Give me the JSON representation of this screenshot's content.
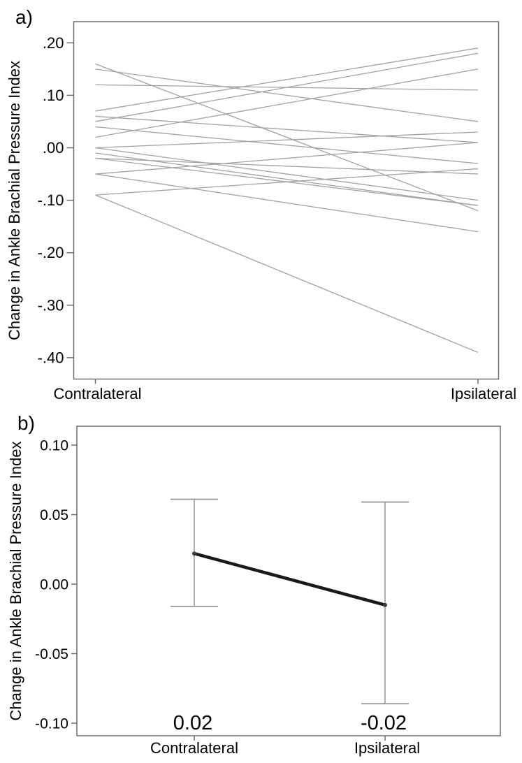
{
  "figure_title": "Change in Ankle Brachial Pressure Index, Contralateral vs Ipsilateral",
  "colors": {
    "background": "#ffffff",
    "axis_border": "#6e6e6e",
    "tick": "#6e6e6e",
    "spaghetti_line": "#a2a2a2",
    "error_bar": "#8f8f8f",
    "mean_line": "#1a1a1a",
    "mean_point": "#3c3c3c",
    "text": "#000000"
  },
  "chart_data": [
    {
      "panel": "a",
      "panel_label": "a)",
      "type": "line",
      "subtype": "paired-spaghetti",
      "title": "",
      "xlabel": "",
      "ylabel": "Change in Ankle Brachial Pressure Index",
      "categories": [
        "Contralateral",
        "Ipsilateral"
      ],
      "y_tick_labels": [
        ".20",
        ".10",
        ".00",
        "-.10",
        "-.20",
        "-.30",
        "-.40"
      ],
      "y_tick_values": [
        0.2,
        0.1,
        0.0,
        -0.1,
        -0.2,
        -0.3,
        -0.4
      ],
      "ylim": [
        -0.44,
        0.24
      ],
      "grid": false,
      "legend": "none",
      "lines": [
        {
          "contralateral": 0.16,
          "ipsilateral": -0.12
        },
        {
          "contralateral": 0.15,
          "ipsilateral": 0.05
        },
        {
          "contralateral": 0.12,
          "ipsilateral": 0.11
        },
        {
          "contralateral": 0.07,
          "ipsilateral": 0.19
        },
        {
          "contralateral": 0.06,
          "ipsilateral": 0.01
        },
        {
          "contralateral": 0.05,
          "ipsilateral": 0.18
        },
        {
          "contralateral": 0.04,
          "ipsilateral": -0.03
        },
        {
          "contralateral": 0.02,
          "ipsilateral": 0.15
        },
        {
          "contralateral": 0.0,
          "ipsilateral": 0.03
        },
        {
          "contralateral": 0.0,
          "ipsilateral": -0.1
        },
        {
          "contralateral": -0.01,
          "ipsilateral": -0.11
        },
        {
          "contralateral": -0.02,
          "ipsilateral": -0.05
        },
        {
          "contralateral": -0.02,
          "ipsilateral": -0.11
        },
        {
          "contralateral": -0.05,
          "ipsilateral": 0.01
        },
        {
          "contralateral": -0.05,
          "ipsilateral": -0.16
        },
        {
          "contralateral": -0.09,
          "ipsilateral": -0.04
        },
        {
          "contralateral": -0.09,
          "ipsilateral": -0.39
        }
      ]
    },
    {
      "panel": "b",
      "panel_label": "b)",
      "type": "line",
      "subtype": "means-with-error-bars",
      "title": "",
      "xlabel": "",
      "ylabel": "Change in Ankle Brachial Pressure Index",
      "categories": [
        "Contralateral",
        "Ipsilateral"
      ],
      "y_tick_labels": [
        "0.10",
        "0.05",
        "0.00",
        "-0.05",
        "-0.10"
      ],
      "y_tick_values": [
        0.1,
        0.05,
        0.0,
        -0.05,
        -0.1
      ],
      "ylim": [
        -0.11,
        0.114
      ],
      "grid": false,
      "legend": "none",
      "points": [
        {
          "category": "Contralateral",
          "mean": 0.022,
          "value_label": "0.02",
          "ci_low": -0.016,
          "ci_high": 0.061
        },
        {
          "category": "Ipsilateral",
          "mean": -0.015,
          "value_label": "-0.02",
          "ci_low": -0.086,
          "ci_high": 0.059
        }
      ]
    }
  ]
}
